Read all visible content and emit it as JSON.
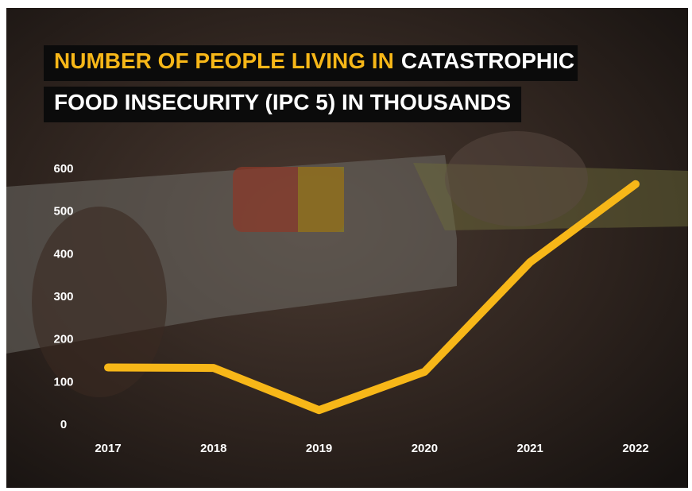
{
  "chart_data": {
    "type": "line",
    "title_lines": [
      [
        {
          "text": "NUMBER OF PEOPLE LIVING IN",
          "color": "#f7b718"
        },
        {
          "text": "CATASTROPHIC",
          "color": "#ffffff"
        }
      ],
      [
        {
          "text": "FOOD INSECURITY (IPC 5) IN THOUSANDS",
          "color": "#ffffff"
        }
      ]
    ],
    "categories": [
      "2017",
      "2018",
      "2019",
      "2020",
      "2021",
      "2022"
    ],
    "values": [
      135,
      134,
      35,
      125,
      382,
      565
    ],
    "color": "#f7b718",
    "ylim": [
      0,
      600
    ],
    "yticks": [
      0,
      100,
      200,
      300,
      400,
      500,
      600
    ],
    "grid": false
  }
}
